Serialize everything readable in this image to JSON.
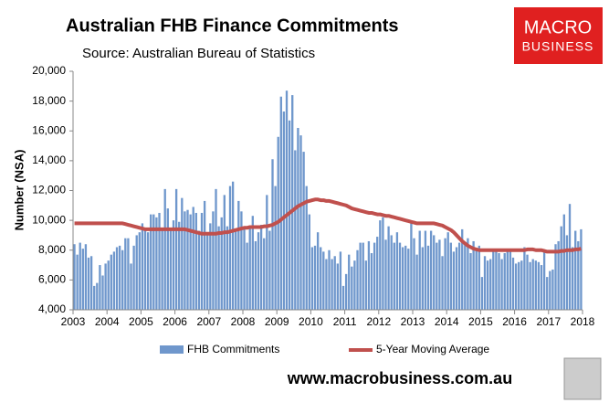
{
  "chart_data": {
    "type": "bar_line",
    "title": "Australian FHB Finance Commitments",
    "subtitle": "Source: Australian Bureau of Statistics",
    "y_label": "Number (NSA)",
    "xlim": [
      2003,
      2018
    ],
    "xticks": [
      2003,
      2004,
      2005,
      2006,
      2007,
      2008,
      2009,
      2010,
      2011,
      2012,
      2013,
      2014,
      2015,
      2016,
      2017,
      2018
    ],
    "ylim": [
      4000,
      20000
    ],
    "yticks": [
      {
        "value": 4000,
        "label": "4,000"
      },
      {
        "value": 6000,
        "label": "6,000"
      },
      {
        "value": 8000,
        "label": "8,000"
      },
      {
        "value": 10000,
        "label": "10,000"
      },
      {
        "value": 12000,
        "label": "12,000"
      },
      {
        "value": 14000,
        "label": "14,000"
      },
      {
        "value": 16000,
        "label": "16,000"
      },
      {
        "value": 18000,
        "label": "18,000"
      },
      {
        "value": 20000,
        "label": "20,000"
      }
    ],
    "series": [
      {
        "name": "FHB Commitments",
        "type": "bar",
        "color": "#6f97cc",
        "values": [
          8400,
          7700,
          8500,
          8100,
          8400,
          7500,
          7600,
          5600,
          5800,
          7000,
          6300,
          7100,
          7300,
          7700,
          7900,
          8200,
          8300,
          8000,
          8800,
          8800,
          7100,
          8300,
          9000,
          9200,
          9800,
          9500,
          9200,
          10400,
          10400,
          10200,
          10500,
          9300,
          12100,
          10800,
          9500,
          10000,
          12100,
          9900,
          11500,
          10600,
          10700,
          10400,
          10900,
          10500,
          9300,
          10500,
          11300,
          9000,
          9800,
          10600,
          12100,
          9600,
          10200,
          11700,
          9600,
          12300,
          12600,
          9300,
          11300,
          10600,
          9600,
          8500,
          9600,
          10300,
          8600,
          9200,
          9700,
          8800,
          11700,
          9300,
          14100,
          12300,
          15600,
          18300,
          17300,
          18700,
          16700,
          18400,
          14700,
          16200,
          15700,
          14600,
          12300,
          10400,
          8200,
          8300,
          9200,
          8200,
          7900,
          7400,
          8000,
          7400,
          7600,
          7100,
          7900,
          5600,
          6400,
          7700,
          6900,
          7300,
          8000,
          8500,
          8500,
          7300,
          8600,
          7800,
          8500,
          8900,
          10000,
          10200,
          8700,
          9600,
          9000,
          8500,
          9200,
          8500,
          8200,
          8300,
          8100,
          9800,
          8800,
          7700,
          9300,
          8200,
          9300,
          8300,
          9300,
          9000,
          8500,
          8700,
          7600,
          8800,
          9200,
          8500,
          7900,
          8200,
          8500,
          9400,
          8400,
          8800,
          7800,
          8600,
          8000,
          8300,
          6200,
          7600,
          7300,
          7400,
          8000,
          8100,
          7800,
          7400,
          7800,
          7900,
          8100,
          7500,
          7100,
          7200,
          7300,
          8200,
          7700,
          7200,
          7400,
          7300,
          7200,
          7000,
          8000,
          6200,
          6600,
          6700,
          8400,
          8600,
          9600,
          10400,
          9000,
          11100,
          8200,
          9300,
          8600,
          9400
        ]
      },
      {
        "name": "5-Year Moving Average",
        "type": "line",
        "color": "#c0504d",
        "values": [
          9800,
          9800,
          9800,
          9800,
          9800,
          9800,
          9800,
          9800,
          9800,
          9800,
          9800,
          9800,
          9800,
          9800,
          9800,
          9800,
          9800,
          9800,
          9750,
          9700,
          9650,
          9600,
          9550,
          9500,
          9450,
          9400,
          9400,
          9400,
          9400,
          9400,
          9400,
          9400,
          9400,
          9400,
          9400,
          9400,
          9400,
          9400,
          9400,
          9400,
          9350,
          9300,
          9250,
          9200,
          9150,
          9100,
          9100,
          9100,
          9100,
          9100,
          9100,
          9150,
          9150,
          9200,
          9200,
          9250,
          9300,
          9350,
          9400,
          9450,
          9500,
          9500,
          9550,
          9550,
          9550,
          9550,
          9550,
          9600,
          9600,
          9650,
          9700,
          9800,
          9900,
          10050,
          10200,
          10350,
          10500,
          10650,
          10800,
          10950,
          11050,
          11150,
          11250,
          11300,
          11350,
          11400,
          11400,
          11350,
          11350,
          11300,
          11300,
          11250,
          11200,
          11150,
          11100,
          11050,
          11000,
          10900,
          10800,
          10750,
          10700,
          10650,
          10600,
          10550,
          10500,
          10500,
          10450,
          10400,
          10400,
          10350,
          10300,
          10300,
          10250,
          10200,
          10150,
          10100,
          10050,
          10000,
          9950,
          9900,
          9850,
          9800,
          9800,
          9800,
          9800,
          9800,
          9800,
          9800,
          9750,
          9700,
          9650,
          9550,
          9450,
          9350,
          9200,
          9000,
          8800,
          8600,
          8450,
          8300,
          8200,
          8100,
          8050,
          8000,
          8000,
          8000,
          8000,
          8000,
          8000,
          8000,
          8000,
          8000,
          8000,
          8000,
          8000,
          8000,
          8000,
          8000,
          8000,
          8000,
          8050,
          8050,
          8050,
          8000,
          8000,
          8000,
          7950,
          7900,
          7900,
          7900,
          7900,
          7900,
          7950,
          7950,
          8000,
          8000,
          8000,
          8050,
          8050,
          8100
        ]
      }
    ],
    "logo": [
      "MACRO",
      "BUSINESS"
    ],
    "footer": "www.macrobusiness.com.au"
  }
}
